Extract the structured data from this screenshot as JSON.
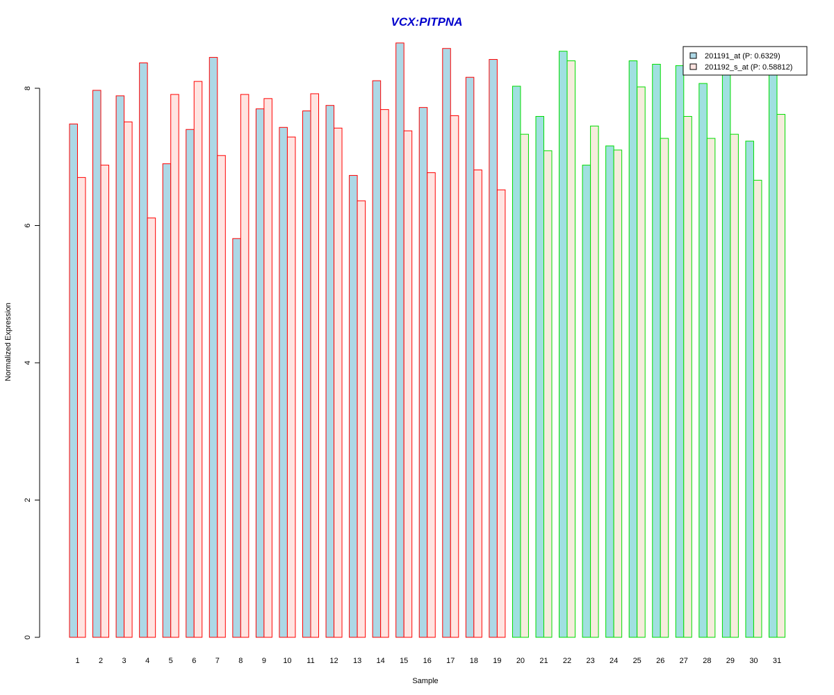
{
  "chart_data": {
    "type": "bar",
    "title": "VCX:PITPNA",
    "xlabel": "Sample",
    "ylabel": "Normalized Expression",
    "ylim": [
      0,
      8.8
    ],
    "yticks": [
      0,
      2,
      4,
      6,
      8
    ],
    "categories": [
      "1",
      "2",
      "3",
      "4",
      "5",
      "6",
      "7",
      "8",
      "9",
      "10",
      "11",
      "12",
      "13",
      "14",
      "15",
      "16",
      "17",
      "18",
      "19",
      "20",
      "21",
      "22",
      "23",
      "24",
      "25",
      "26",
      "27",
      "28",
      "29",
      "30",
      "31"
    ],
    "group_a_count": 19,
    "series": [
      {
        "name": "201191_at (P: 0.6329)",
        "values": [
          7.48,
          7.97,
          7.89,
          8.37,
          6.9,
          7.4,
          8.45,
          5.81,
          7.7,
          7.43,
          7.67,
          7.75,
          6.73,
          8.11,
          8.66,
          7.72,
          8.58,
          8.16,
          8.42,
          8.03,
          7.59,
          8.54,
          6.88,
          7.16,
          8.4,
          8.35,
          8.33,
          8.07,
          8.2,
          7.23,
          8.2
        ]
      },
      {
        "name": "201192_s_at (P: 0.58812)",
        "values": [
          6.7,
          6.88,
          7.51,
          6.11,
          7.91,
          8.1,
          7.02,
          7.91,
          7.85,
          7.29,
          7.92,
          7.42,
          6.36,
          7.69,
          7.38,
          6.77,
          7.6,
          6.81,
          6.52,
          7.33,
          7.09,
          8.4,
          7.45,
          7.1,
          8.02,
          7.27,
          7.59,
          7.27,
          7.33,
          6.66,
          7.62
        ]
      }
    ],
    "colors": {
      "title": "#0000cc",
      "series_a_fill": "#add8e6",
      "series_b_fill": "#ffe4e1",
      "group2_series_a_fill": "#a0e0e0",
      "group2_series_b_fill": "#f5ecdc",
      "group1_border": "#ff0000",
      "group2_border": "#00dd00"
    },
    "legend_position": "top-right",
    "grid": false
  }
}
